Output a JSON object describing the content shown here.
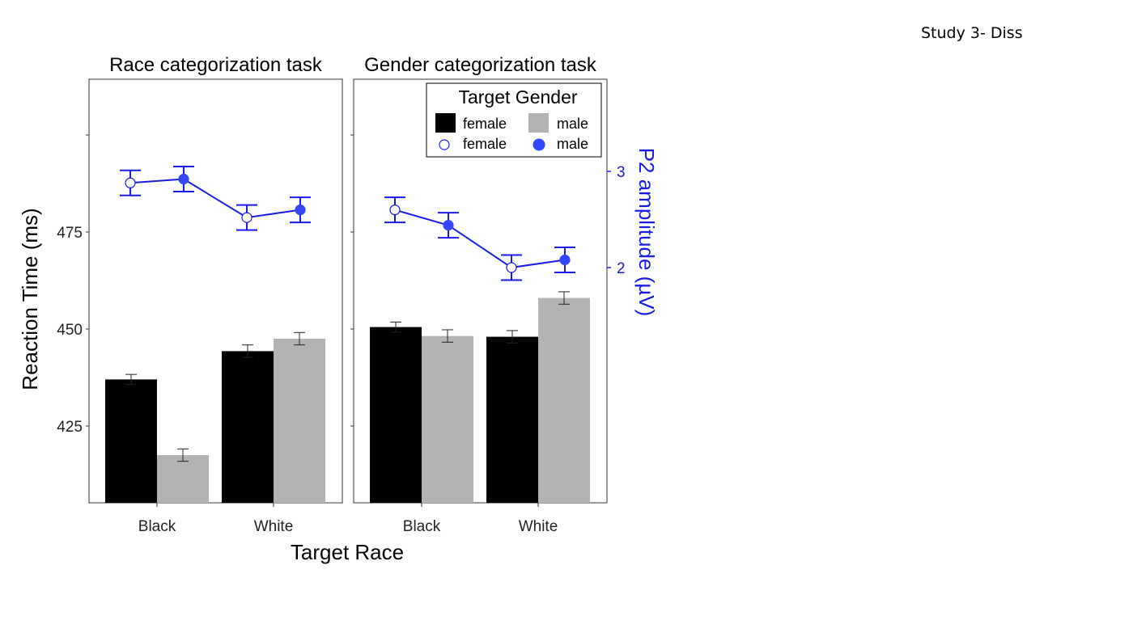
{
  "slide_label": "Study 3- Diss",
  "colors": {
    "female_bar": "#000000",
    "male_bar": "#b3b3b3",
    "line": "#1a1ae6",
    "male_point": "#3347ff"
  },
  "chart_data": {
    "type": "bar",
    "xlabel": "Target Race",
    "ylabel": "Reaction Time (ms)",
    "ylabel_right": "P2 amplitude (µV)",
    "ylim": [
      405,
      515
    ],
    "y_ticks": [
      "425",
      "450",
      "475"
    ],
    "ylim_right": [
      0.4,
      4.8
    ],
    "y_ticks_right": [
      "2",
      "3"
    ],
    "categories": [
      "Black",
      "White"
    ],
    "legend": {
      "title": "Target Gender",
      "bar_female": "female",
      "bar_male": "male",
      "point_female": "female",
      "point_male": "male",
      "placement": "top-right"
    },
    "panels": [
      {
        "title": "Race categorization task",
        "bar_series": [
          {
            "name": "female",
            "values": [
              437.0,
              444.3
            ],
            "err": [
              1.3,
              1.6
            ]
          },
          {
            "name": "male",
            "values": [
              417.5,
              447.5
            ],
            "err": [
              1.6,
              1.6
            ]
          }
        ],
        "p2_series": [
          {
            "name": "female",
            "values": [
              2.88,
              2.52
            ],
            "err": [
              0.13,
              0.13
            ]
          },
          {
            "name": "male",
            "values": [
              2.92,
              2.6
            ],
            "err": [
              0.13,
              0.13
            ]
          }
        ]
      },
      {
        "title": "Gender categorization task",
        "bar_series": [
          {
            "name": "female",
            "values": [
              450.5,
              448.0
            ],
            "err": [
              1.3,
              1.6
            ]
          },
          {
            "name": "male",
            "values": [
              448.2,
              458.0
            ],
            "err": [
              1.6,
              1.6
            ]
          }
        ],
        "p2_series": [
          {
            "name": "female",
            "values": [
              2.6,
              2.0
            ],
            "err": [
              0.13,
              0.13
            ]
          },
          {
            "name": "male",
            "values": [
              2.44,
              2.08
            ],
            "err": [
              0.13,
              0.13
            ]
          }
        ]
      }
    ]
  }
}
